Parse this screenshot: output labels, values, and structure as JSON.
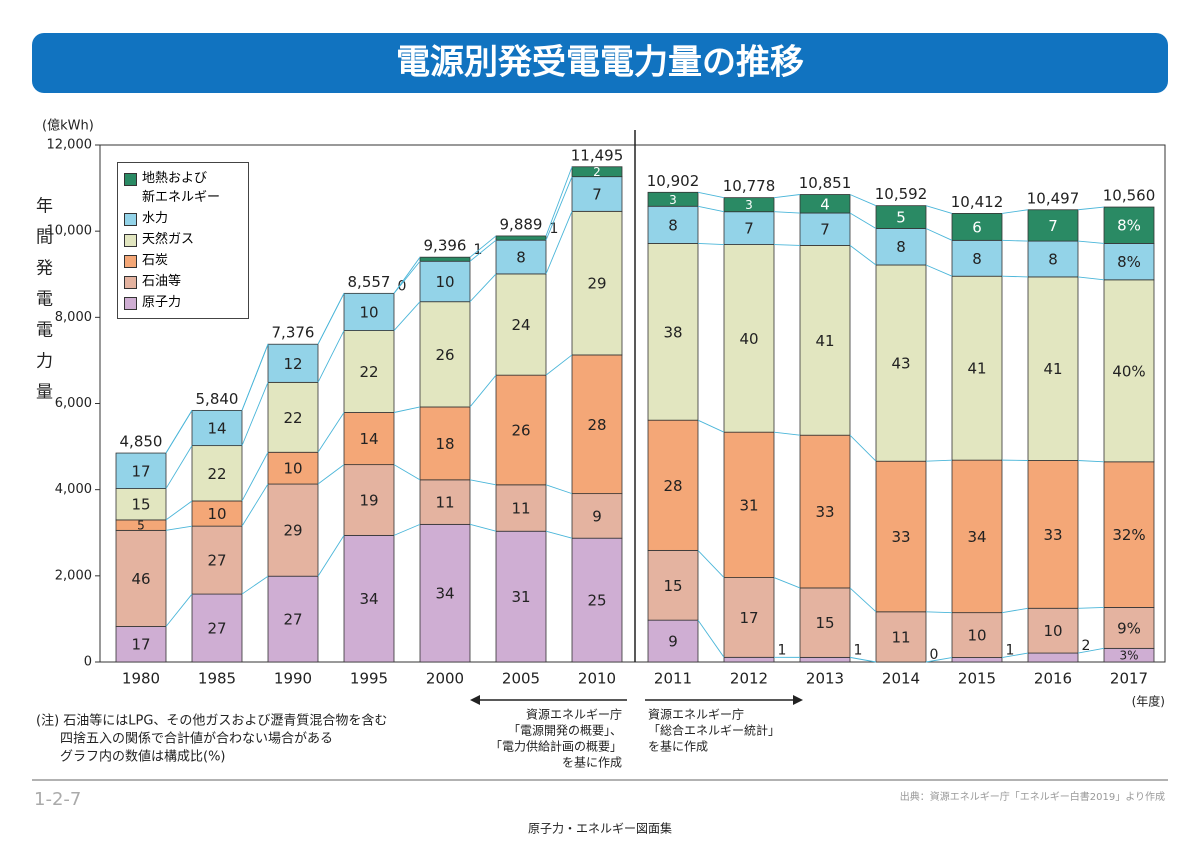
{
  "chart_data": {
    "type": "stacked_bar",
    "title": "電源別発受電電力量の推移",
    "y_unit": "(億kWh)",
    "y_axis_label": "年間発電電力量",
    "x_unit": "(年度)",
    "categories": [
      "1980",
      "1985",
      "1990",
      "1995",
      "2000",
      "2005",
      "2010",
      "2011",
      "2012",
      "2013",
      "2014",
      "2015",
      "2016",
      "2017"
    ],
    "ylim": [
      0,
      12000
    ],
    "yticks": [
      0,
      {
        "value": 2000,
        "label": "2,000"
      },
      {
        "value": 4000,
        "label": "4,000"
      },
      {
        "value": 6000,
        "label": "6,000"
      },
      {
        "value": 8000,
        "label": "8,000"
      },
      {
        "value": 10000,
        "label": "10,000"
      },
      {
        "value": 12000,
        "label": "12,000"
      }
    ],
    "totals": {
      "values": [
        4850,
        5840,
        7376,
        8557,
        9396,
        9889,
        11495,
        10902,
        10778,
        10851,
        10592,
        10412,
        10497,
        10560
      ],
      "value_labels": [
        "4,850",
        "5,840",
        "7,376",
        "8,557",
        "9,396",
        "9,889",
        "11,495",
        "10,902",
        "10,778",
        "10,851",
        "10,592",
        "10,412",
        "10,497",
        "10,560"
      ]
    },
    "series": [
      {
        "name": "原子力",
        "color": "#cfaed3",
        "values": [
          17,
          27,
          27,
          34,
          34,
          31,
          25,
          9,
          1,
          1,
          0,
          1,
          2,
          3
        ],
        "value_labels": [
          "17",
          "27",
          "27",
          "34",
          "34",
          "31",
          "25",
          "9",
          "1",
          "1",
          "0",
          "1",
          "2",
          "3%"
        ]
      },
      {
        "name": "石油等",
        "color": "#e4b3a0",
        "values": [
          46,
          27,
          29,
          19,
          11,
          11,
          9,
          15,
          17,
          15,
          11,
          10,
          10,
          9
        ],
        "value_labels": [
          "46",
          "27",
          "29",
          "19",
          "11",
          "11",
          "9",
          "15",
          "17",
          "15",
          "11",
          "10",
          "10",
          "9%"
        ]
      },
      {
        "name": "石炭",
        "color": "#f4a777",
        "values": [
          5,
          10,
          10,
          14,
          18,
          26,
          28,
          28,
          31,
          33,
          33,
          34,
          33,
          32
        ],
        "value_labels": [
          "5",
          "10",
          "10",
          "14",
          "18",
          "26",
          "28",
          "28",
          "31",
          "33",
          "33",
          "34",
          "33",
          "32%"
        ]
      },
      {
        "name": "天然ガス",
        "color": "#e2e6c0",
        "values": [
          15,
          22,
          22,
          22,
          26,
          24,
          29,
          38,
          40,
          41,
          43,
          41,
          41,
          40
        ],
        "value_labels": [
          "15",
          "22",
          "22",
          "22",
          "26",
          "24",
          "29",
          "38",
          "40",
          "41",
          "43",
          "41",
          "41",
          "40%"
        ]
      },
      {
        "name": "水力",
        "color": "#93d3e8",
        "values": [
          17,
          14,
          12,
          10,
          10,
          8,
          7,
          8,
          7,
          7,
          8,
          8,
          8,
          8
        ],
        "value_labels": [
          "17",
          "14",
          "12",
          "10",
          "10",
          "8",
          "7",
          "8",
          "7",
          "7",
          "8",
          "8",
          "8",
          "8%"
        ]
      },
      {
        "name": "地熱および\n新エネルギー",
        "color": "#2a8a64",
        "values": [
          null,
          null,
          null,
          0,
          1,
          1,
          2,
          3,
          3,
          4,
          5,
          6,
          7,
          8
        ],
        "value_labels": [
          null,
          null,
          null,
          "0",
          "1",
          "1",
          "2",
          "3",
          "3",
          "4",
          "5",
          "6",
          "7",
          "8%"
        ]
      }
    ],
    "notes": [
      "(注) 石油等にはLPG、その他ガスおよび瀝青質混合物を含む",
      "四捨五入の関係で合計値が合わない場合がある",
      "グラフ内の数値は構成比(%)"
    ],
    "source_left": [
      "資源エネルギー庁",
      "「電源開発の概要」、",
      "「電力供給計画の概要」",
      "を基に作成"
    ],
    "source_right": [
      "資源エネルギー庁",
      "「総合エネルギー統計」",
      "を基に作成"
    ]
  },
  "footer": {
    "figure_no": "1-2-7",
    "credit": "出典：資源エネルギー庁「エネルギー白書2019」より作成",
    "book": "原子力・エネルギー図面集"
  }
}
